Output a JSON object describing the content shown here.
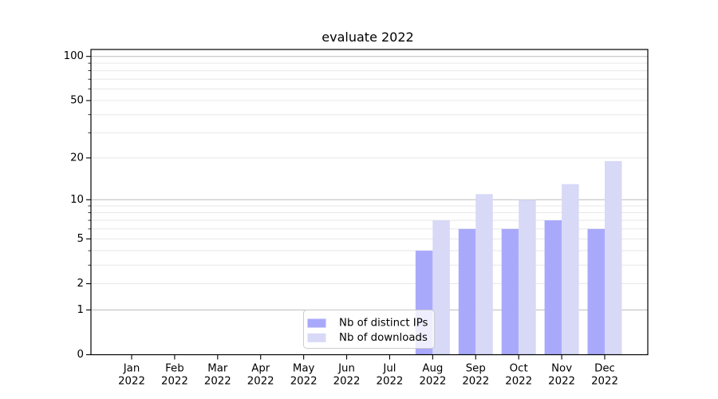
{
  "figure": {
    "background": "#ffffff"
  },
  "chart_data": {
    "type": "bar",
    "title": "evaluate 2022",
    "x_tick_months": [
      "Jan",
      "Feb",
      "Mar",
      "Apr",
      "May",
      "Jun",
      "Jul",
      "Aug",
      "Sep",
      "Oct",
      "Nov",
      "Dec"
    ],
    "x_tick_year": "2022",
    "categories": [
      "Jan 2022",
      "Feb 2022",
      "Mar 2022",
      "Apr 2022",
      "May 2022",
      "Jun 2022",
      "Jul 2022",
      "Aug 2022",
      "Sep 2022",
      "Oct 2022",
      "Nov 2022",
      "Dec 2022"
    ],
    "series": [
      {
        "name": "Nb of distinct IPs",
        "color": "#a9a9fb",
        "values": [
          0,
          0,
          0,
          0,
          0,
          0,
          0,
          4,
          6,
          6,
          7,
          6
        ]
      },
      {
        "name": "Nb of downloads",
        "color": "#d8d8f7",
        "values": [
          0,
          0,
          0,
          0,
          0,
          0,
          0,
          7,
          11,
          10,
          13,
          19
        ]
      }
    ],
    "y_scale": "log10(1+v)",
    "y_ticks": [
      0,
      1,
      2,
      5,
      10,
      20,
      50,
      100
    ],
    "y_major_gridlines": [
      1,
      10,
      100
    ],
    "y_minor_gridlines": [
      2,
      3,
      4,
      5,
      6,
      7,
      8,
      9,
      20,
      30,
      40,
      50,
      60,
      70,
      80,
      90
    ],
    "ylim": [
      0,
      112
    ],
    "grid": true,
    "legend": {
      "position": "lower-center-inside",
      "entries": [
        "Nb of distinct IPs",
        "Nb of downloads"
      ]
    },
    "colors": {
      "major_grid": "#bcbcbc",
      "minor_grid": "#e8e8e8",
      "axis": "#000000",
      "legend_border": "#cccccc",
      "legend_background": "rgba(255,255,255,0.8)"
    }
  }
}
